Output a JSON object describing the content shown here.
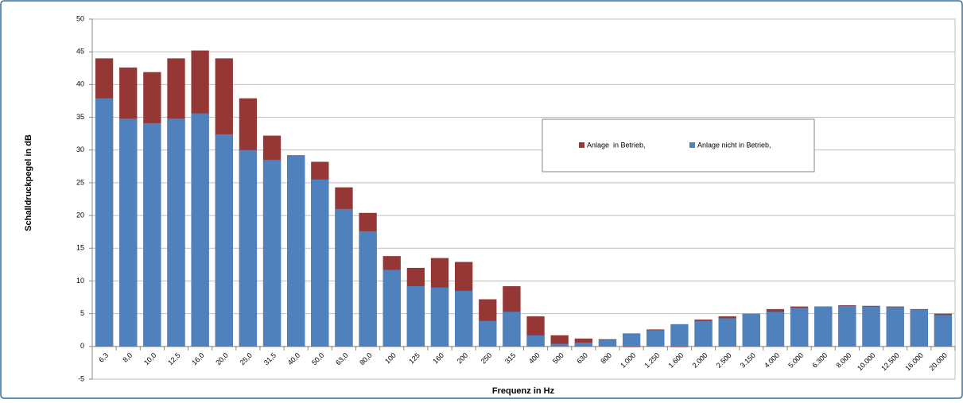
{
  "chart_data": {
    "type": "bar",
    "y_label": "Schalldruckpegel in dB",
    "x_label": "Frequenz in Hz",
    "categories": [
      "6,3",
      "8,0",
      "10,0",
      "12,5",
      "16,0",
      "20,0",
      "25,0",
      "31,5",
      "40,0",
      "50,0",
      "63,0",
      "80,0",
      "100",
      "125",
      "160",
      "200",
      "250",
      "315",
      "400",
      "500",
      "630",
      "800",
      "1.000",
      "1.250",
      "1.600",
      "2.000",
      "2.500",
      "3.150",
      "4.000",
      "5.000",
      "6.300",
      "8.000",
      "10.000",
      "12.500",
      "16.000",
      "20.000"
    ],
    "series": [
      {
        "name": "Anlage  in Betrieb,",
        "color": "#953735",
        "values": [
          44.0,
          42.6,
          41.9,
          44.0,
          45.2,
          44.0,
          37.9,
          32.2,
          29.2,
          28.2,
          24.3,
          20.4,
          13.8,
          12.0,
          13.5,
          12.9,
          7.2,
          9.2,
          4.6,
          1.7,
          1.2,
          1.1,
          -0.1,
          2.6,
          -0.1,
          4.1,
          4.6,
          5.0,
          5.7,
          6.1,
          6.1,
          6.3,
          6.2,
          6.1,
          5.7,
          5.0
        ]
      },
      {
        "name": "Anlage nicht in Betrieb,",
        "color": "#4f81bd",
        "values": [
          37.9,
          34.8,
          34.1,
          34.8,
          35.6,
          32.4,
          30.0,
          28.5,
          29.1,
          25.5,
          21.0,
          17.6,
          11.7,
          9.2,
          9.0,
          8.5,
          3.9,
          5.3,
          1.7,
          0.4,
          0.6,
          1.0,
          2.0,
          2.5,
          3.4,
          3.9,
          4.3,
          5.0,
          5.3,
          5.9,
          6.1,
          6.2,
          6.1,
          6.0,
          5.6,
          4.8
        ]
      }
    ],
    "ylim": [
      -5,
      50
    ],
    "yticks": [
      -5,
      0,
      5,
      10,
      15,
      20,
      25,
      30,
      35,
      40,
      45,
      50
    ],
    "grid": true
  }
}
